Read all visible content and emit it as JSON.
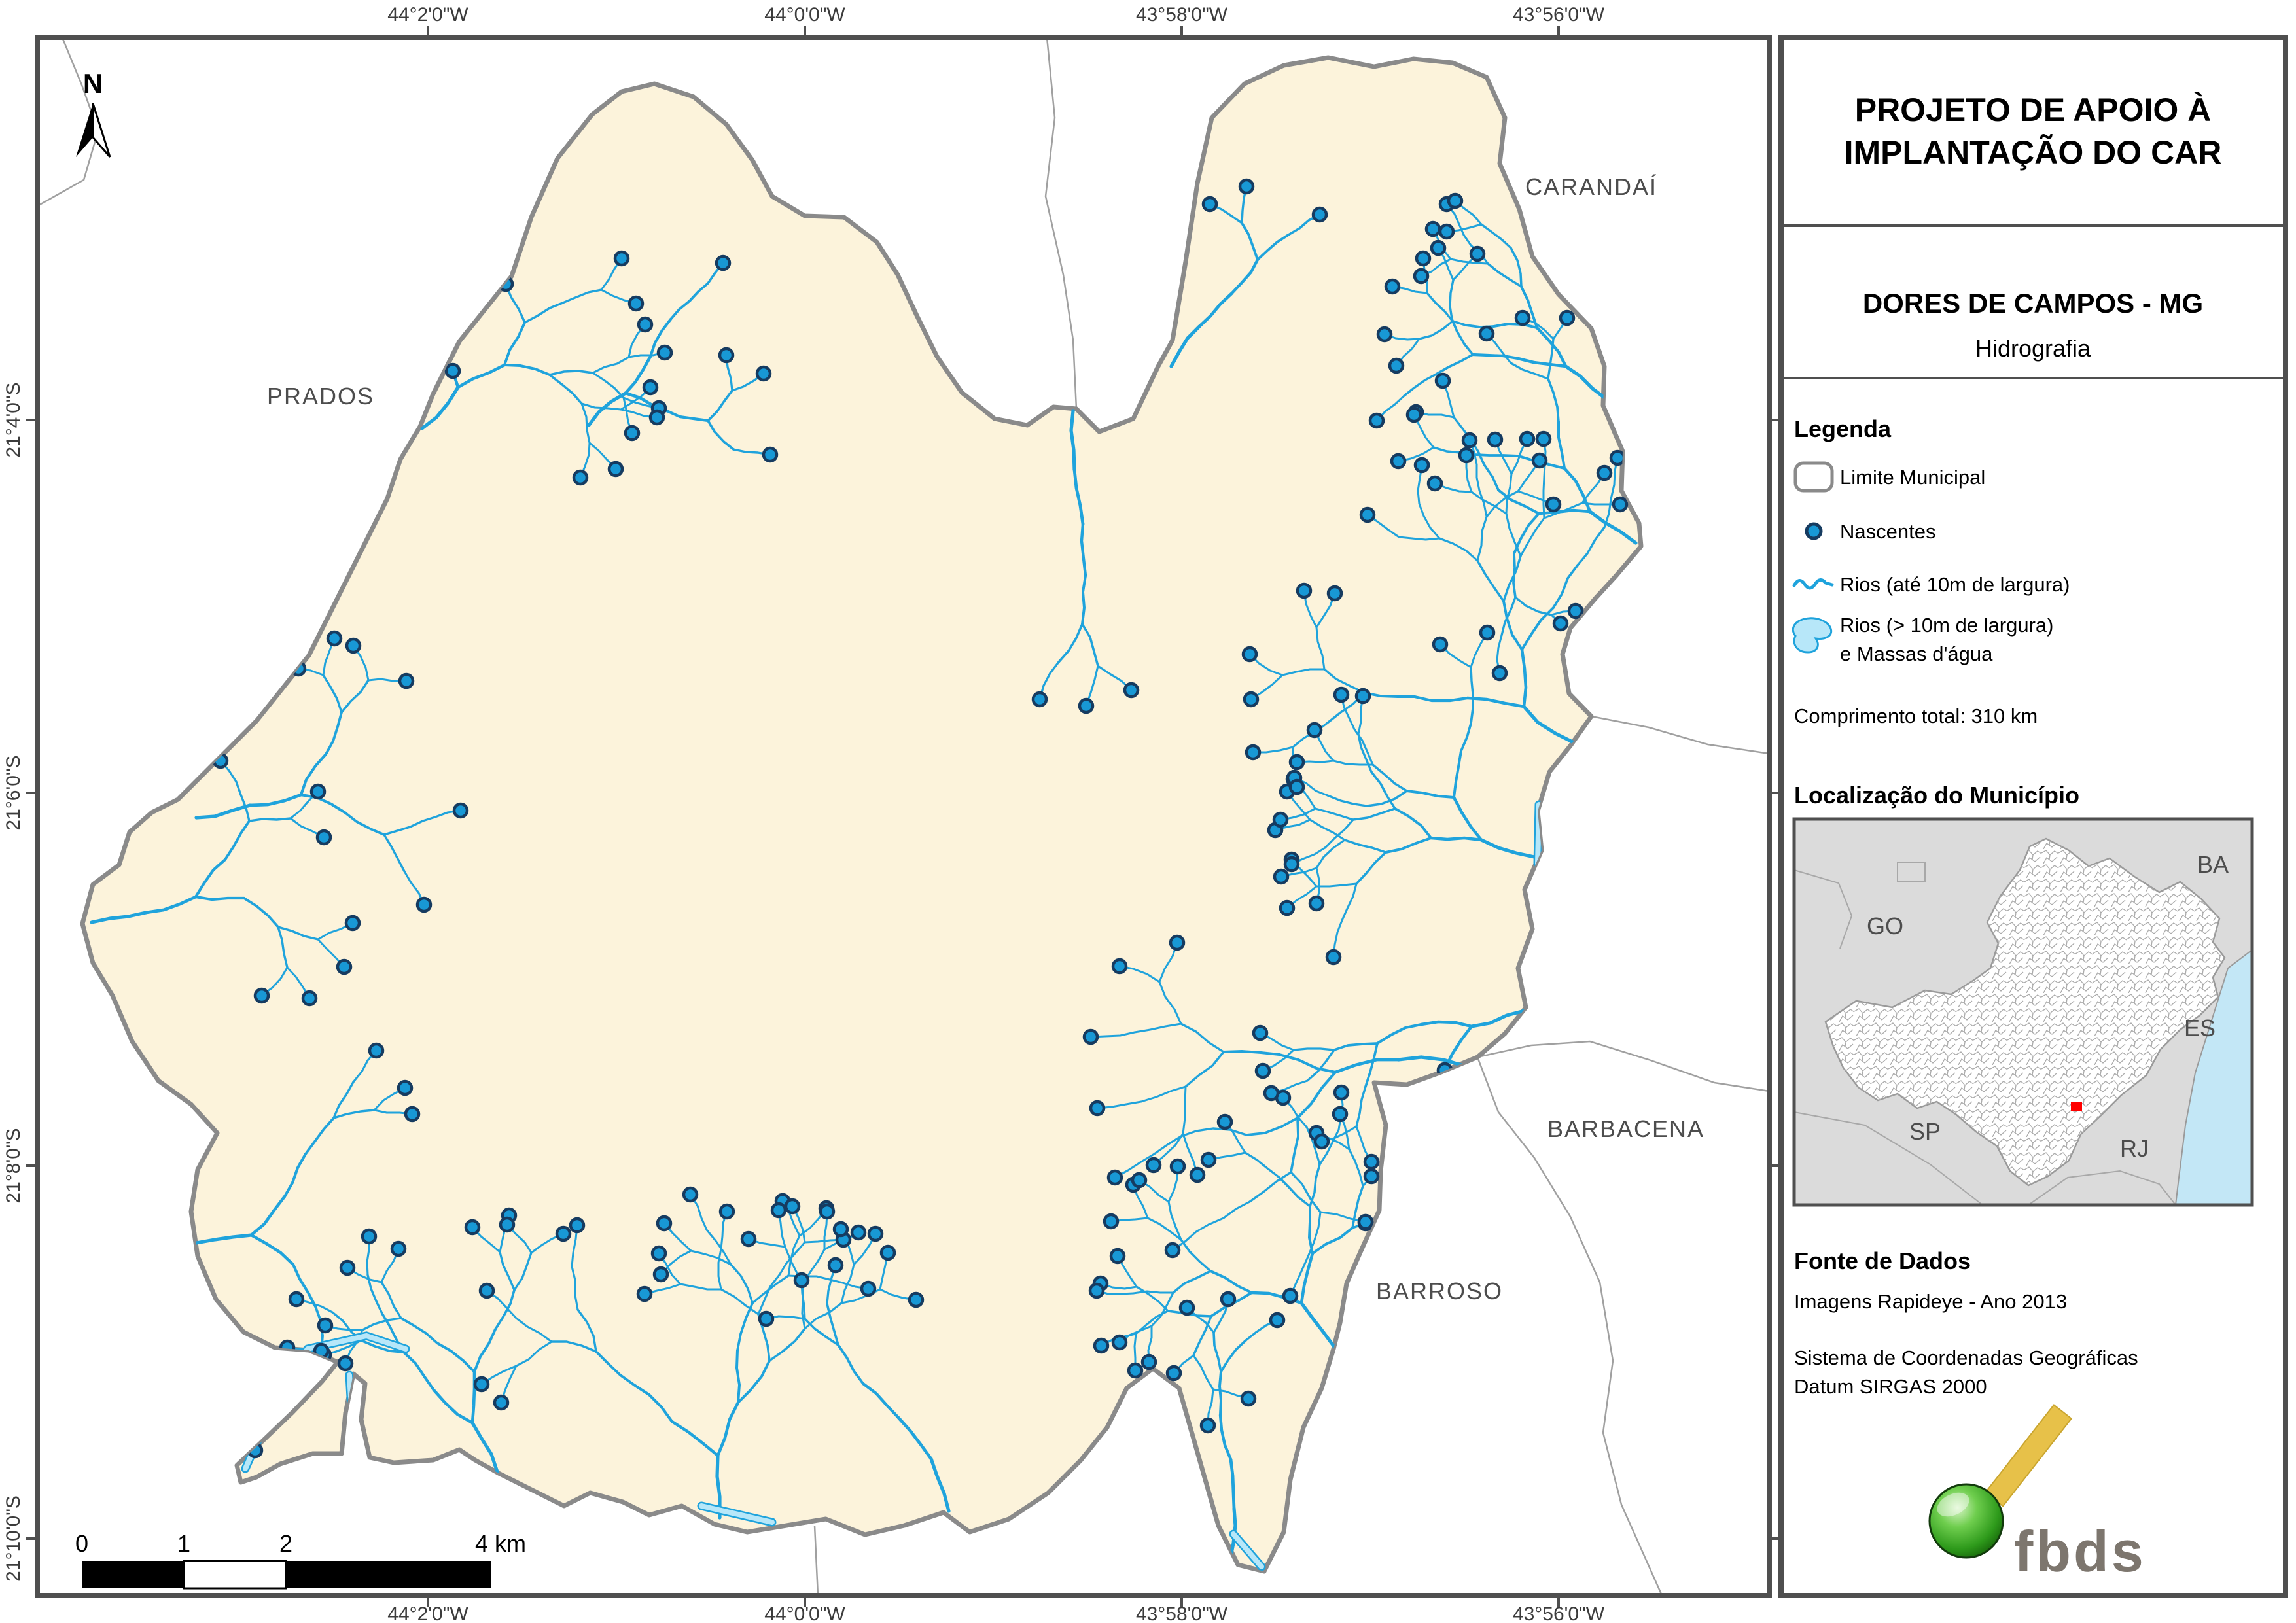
{
  "colors": {
    "river": "#1FA3DC",
    "water": "#B7E7F9",
    "nascente": "#1898D5",
    "nascente_ring": "#163B60",
    "municipality_fill": "#FCF3DB",
    "municipality_border": "#8A8A8A",
    "neighbor_line": "#A0A0A0",
    "frame": "#4F4F4F",
    "label_gray": "#4D4D4D",
    "inset_bg": "#DBDBDB",
    "inset_sea": "#C3E7F6",
    "marker_red": "#FF0000",
    "logo_green": "#3DA52C",
    "logo_yellow": "#E7C149",
    "logo_gray": "#7D766E"
  },
  "map": {
    "north_label": "N",
    "neighbors": {
      "prados": "PRADOS",
      "carandai": "CARANDAÍ",
      "barbacena": "BARBACENA",
      "barroso": "BARROSO"
    },
    "coords_top": [
      "44°2'0\"W",
      "44°0'0\"W",
      "43°58'0\"W",
      "43°56'0\"W"
    ],
    "coords_bottom": [
      "44°2'0\"W",
      "44°0'0\"W",
      "43°58'0\"W",
      "43°56'0\"W"
    ],
    "coords_left": [
      "21°4'0\"S",
      "21°6'0\"S",
      "21°8'0\"S",
      "21°10'0\"S"
    ],
    "scale_labels": [
      "0",
      "1",
      "2",
      "4 km"
    ]
  },
  "panel": {
    "title_line1": "PROJETO DE APOIO À",
    "title_line2": "IMPLANTAÇÃO DO CAR",
    "municipality": "DORES DE CAMPOS - MG",
    "subtitle": "Hidrografia",
    "legend": {
      "heading": "Legenda",
      "limite": "Limite Municipal",
      "nascentes": "Nascentes",
      "rios": "Rios (até 10m de largura)",
      "rios_largos_1": "Rios (> 10m de largura)",
      "rios_largos_2": "e Massas d'água",
      "total": "Comprimento total: 310 km"
    },
    "location": {
      "heading": "Localização do Município",
      "states": [
        "GO",
        "BA",
        "ES",
        "SP",
        "RJ"
      ]
    },
    "source": {
      "heading": "Fonte de Dados",
      "line1": "Imagens Rapideye - Ano 2013",
      "line2": "Sistema de Coordenadas Geográficas",
      "line3": "Datum SIRGAS 2000"
    },
    "logo_text": "fbds"
  }
}
